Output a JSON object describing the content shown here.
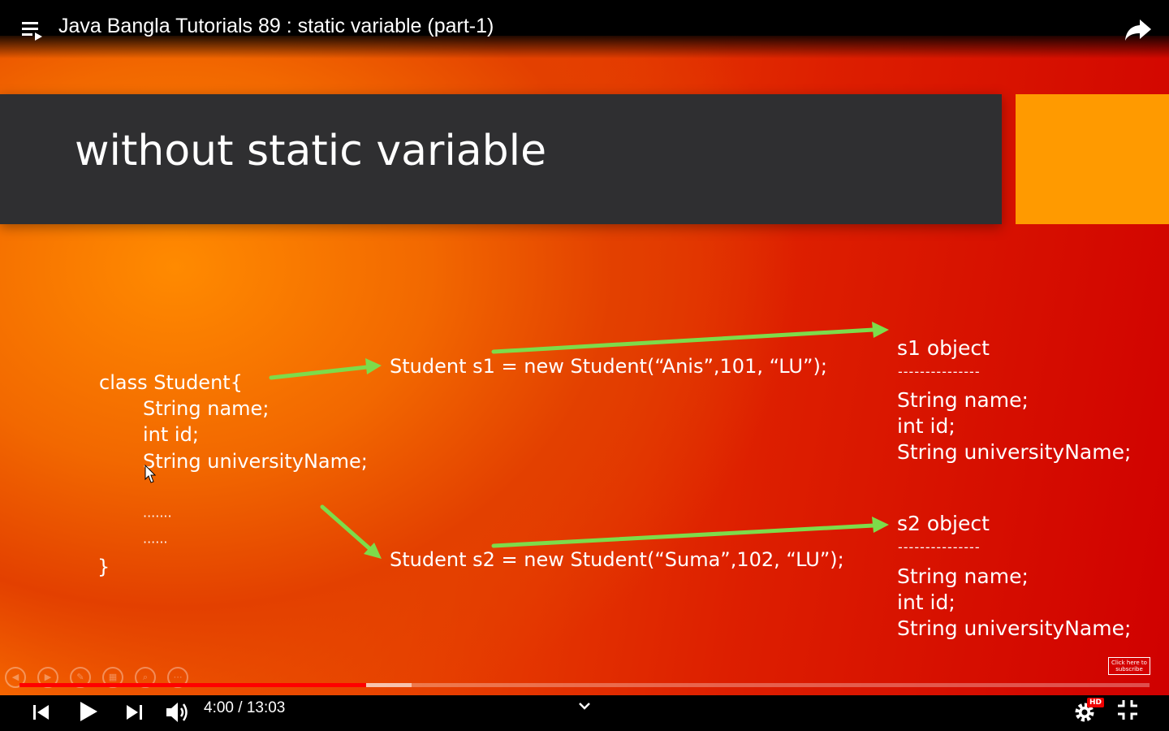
{
  "player": {
    "title": "Java Bangla Tutorials 89 : static variable (part-1)",
    "time": "4:00 / 13:03",
    "quality_badge": "HD",
    "progress_played": 0.307,
    "progress_buffered": 0.347
  },
  "slide": {
    "title": "without static variable",
    "class_code": [
      "class Student{",
      "String name;",
      "int id;",
      "String universityName;",
      "·······",
      "······",
      "}"
    ],
    "statement_s1": "Student s1 = new Student(“Anis”,101, “LU”);",
    "statement_s2": "Student s2 = new Student(“Suma”,102, “LU”);",
    "object_s1": {
      "title": "s1 object",
      "divider": "---------------",
      "fields": [
        "String name;",
        "int id;",
        "String universityName;"
      ]
    },
    "object_s2": {
      "title": "s2 object",
      "divider": "---------------",
      "fields": [
        "String name;",
        "int id;",
        "String universityName;"
      ]
    },
    "subscribe_badge": "Click here to subscribe"
  },
  "colors": {
    "title_band": "#2f2f31",
    "accent": "#ff9a00",
    "arrow": "#7ddc4a",
    "progress": "#ff0000"
  }
}
